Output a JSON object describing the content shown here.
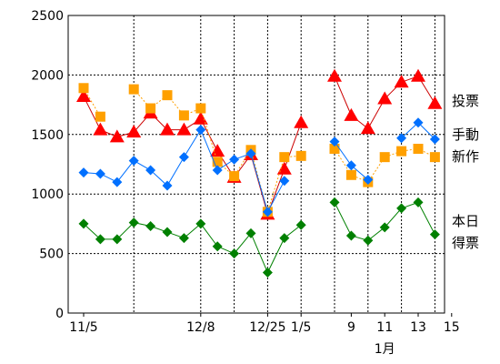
{
  "chart_data": {
    "type": "line",
    "title": "",
    "xlabel": "",
    "ylabel": "",
    "ylim": [
      0,
      2500
    ],
    "y_ticks": [
      0,
      500,
      1000,
      1500,
      2000,
      2500
    ],
    "grid": true,
    "x_tick_labels": [
      {
        "i": 0,
        "text": "11/5"
      },
      {
        "i": 7,
        "text": "12/8"
      },
      {
        "i": 11,
        "text": "12/25"
      },
      {
        "i": 13,
        "text": "1/5"
      },
      {
        "i": 16,
        "text": "9"
      },
      {
        "i": 18,
        "text": "11"
      },
      {
        "i": 20,
        "text": "13"
      },
      {
        "i": 22,
        "text": "15"
      }
    ],
    "x_sub_label": {
      "i": 18,
      "text": "1月"
    },
    "n_points": 23,
    "series": [
      {
        "name": "投票",
        "color": "#ff0000",
        "line_color": "#cc0000",
        "marker": "triangle",
        "values": [
          1820,
          1540,
          1480,
          1520,
          1680,
          1540,
          1540,
          1630,
          1360,
          1140,
          1330,
          830,
          1210,
          1600,
          null,
          1990,
          1660,
          1550,
          1800,
          1940,
          1990,
          1760,
          null
        ]
      },
      {
        "name": "手動",
        "color": "#ffa000",
        "line_color": "#ffa000",
        "marker": "square",
        "values": [
          1890,
          1650,
          null,
          1880,
          1720,
          1830,
          1660,
          1720,
          1270,
          1150,
          1370,
          850,
          1310,
          1320,
          null,
          1380,
          1160,
          1100,
          1310,
          1360,
          1380,
          1310,
          null
        ]
      },
      {
        "name": "新作",
        "color": "#0070ff",
        "line_color": "#0070ff",
        "marker": "diamond",
        "values": [
          1180,
          1170,
          1100,
          1280,
          1200,
          1070,
          1310,
          1540,
          1200,
          1290,
          1340,
          850,
          1110,
          null,
          null,
          1440,
          1240,
          1120,
          null,
          1470,
          1600,
          1460,
          null
        ]
      },
      {
        "name": "本日得票",
        "color": "#008000",
        "line_color": "#008000",
        "marker": "diamond",
        "values": [
          750,
          620,
          620,
          760,
          730,
          680,
          630,
          750,
          560,
          500,
          670,
          340,
          630,
          740,
          null,
          930,
          650,
          610,
          720,
          880,
          930,
          660,
          null
        ]
      }
    ],
    "legend": {
      "position": "right",
      "labels": [
        "投票",
        "手動",
        "新作",
        "本日",
        "得票"
      ]
    }
  }
}
